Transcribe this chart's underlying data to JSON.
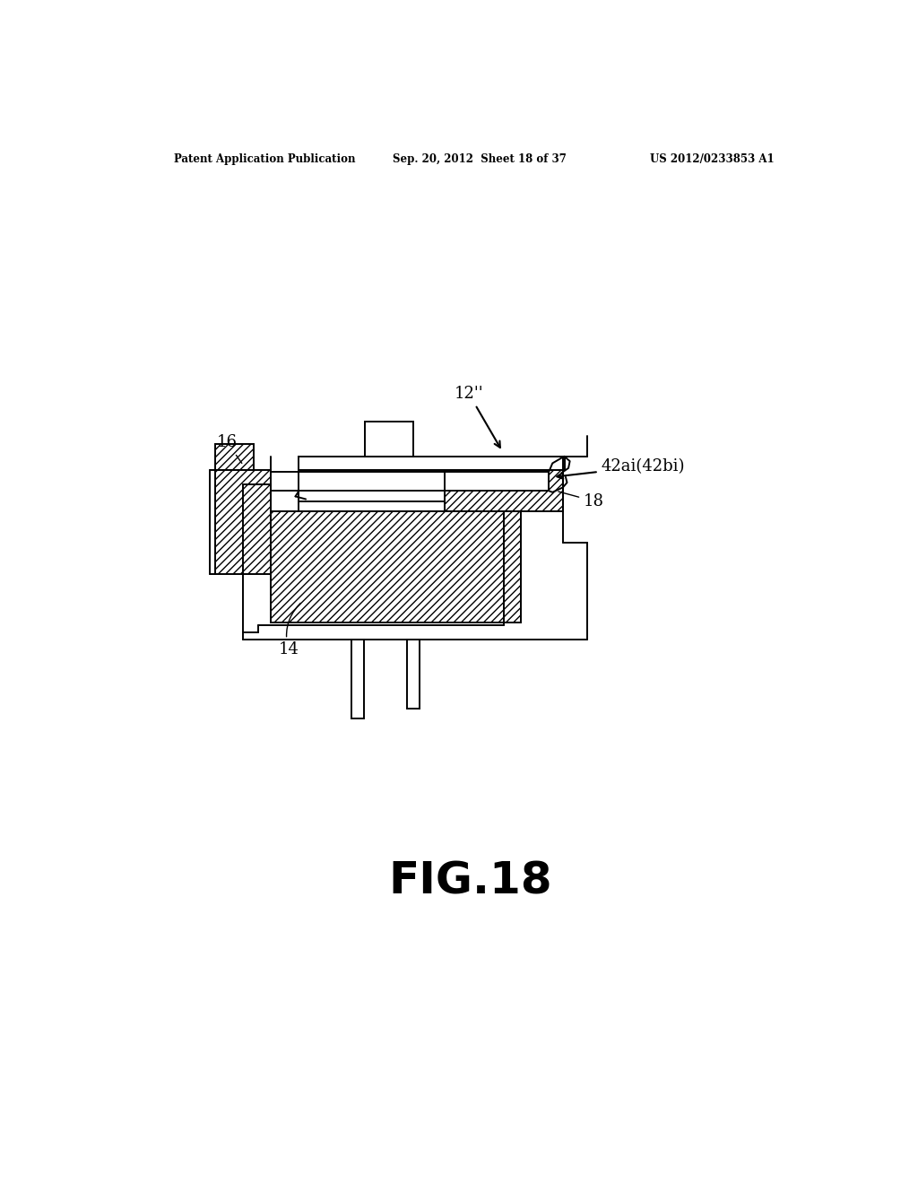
{
  "title": "FIG.18",
  "header_left": "Patent Application Publication",
  "header_center": "Sep. 20, 2012  Sheet 18 of 37",
  "header_right": "US 2012/0233853 A1",
  "bg_color": "#ffffff",
  "line_color": "#000000"
}
